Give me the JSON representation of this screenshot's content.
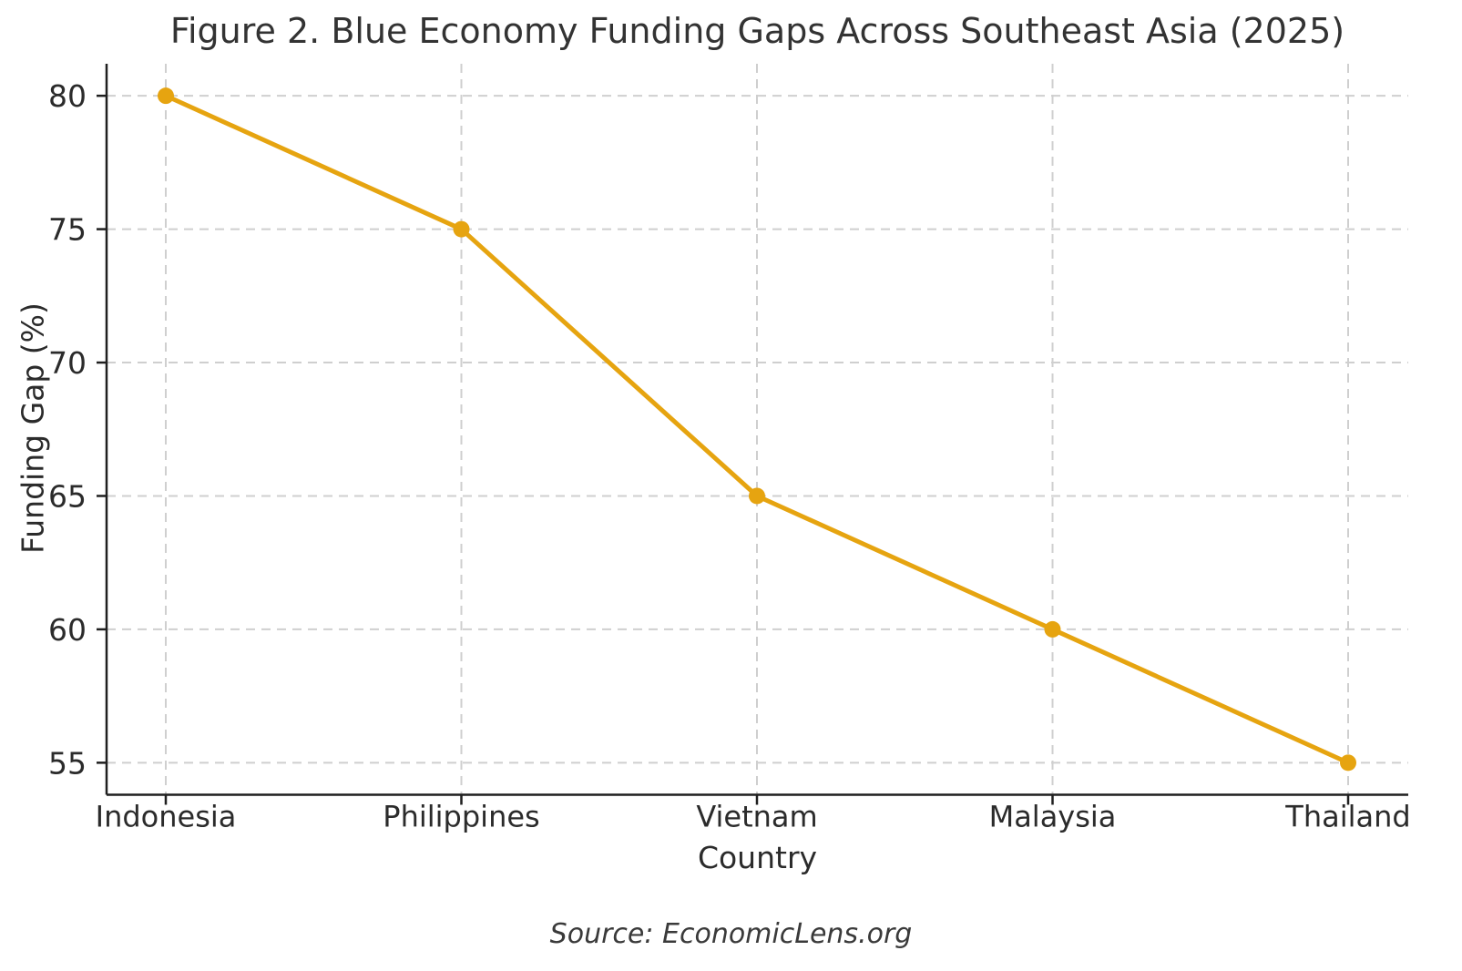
{
  "chart_data": {
    "type": "line",
    "title": "Figure 2. Blue Economy Funding Gaps Across Southeast Asia (2025)",
    "xlabel": "Country",
    "ylabel": "Funding Gap (%)",
    "source": "Source: EconomicLens.org",
    "categories": [
      "Indonesia",
      "Philippines",
      "Vietnam",
      "Malaysia",
      "Thailand"
    ],
    "values": [
      80,
      75,
      65,
      60,
      55
    ],
    "yticks": [
      55,
      60,
      65,
      70,
      75,
      80
    ],
    "ylim": [
      53.8,
      81.2
    ],
    "grid": true,
    "grid_style": "dashed",
    "legend": "none",
    "marker": "circle",
    "colors": {
      "line": "#E6A410",
      "grid": "#CFCFCF",
      "axis": "#1F1F1F",
      "text": "#2B2B2B"
    }
  }
}
